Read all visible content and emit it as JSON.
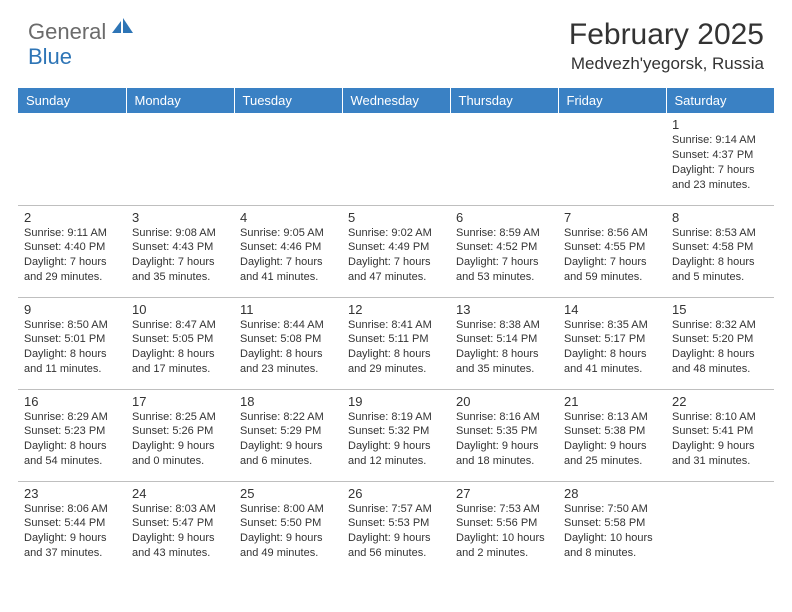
{
  "logo": {
    "general": "General",
    "blue": "Blue"
  },
  "title": "February 2025",
  "location": "Medvezh'yegorsk, Russia",
  "colors": {
    "header_bg": "#3a81c4",
    "header_text": "#ffffff",
    "body_text": "#333333",
    "grid_line": "#bfbfbf",
    "logo_gray": "#6b6b6b",
    "logo_blue": "#2e75b6",
    "background": "#ffffff"
  },
  "weekdays": [
    "Sunday",
    "Monday",
    "Tuesday",
    "Wednesday",
    "Thursday",
    "Friday",
    "Saturday"
  ],
  "weeks": [
    [
      null,
      null,
      null,
      null,
      null,
      null,
      {
        "n": "1",
        "sr": "Sunrise: 9:14 AM",
        "ss": "Sunset: 4:37 PM",
        "d1": "Daylight: 7 hours",
        "d2": "and 23 minutes."
      }
    ],
    [
      {
        "n": "2",
        "sr": "Sunrise: 9:11 AM",
        "ss": "Sunset: 4:40 PM",
        "d1": "Daylight: 7 hours",
        "d2": "and 29 minutes."
      },
      {
        "n": "3",
        "sr": "Sunrise: 9:08 AM",
        "ss": "Sunset: 4:43 PM",
        "d1": "Daylight: 7 hours",
        "d2": "and 35 minutes."
      },
      {
        "n": "4",
        "sr": "Sunrise: 9:05 AM",
        "ss": "Sunset: 4:46 PM",
        "d1": "Daylight: 7 hours",
        "d2": "and 41 minutes."
      },
      {
        "n": "5",
        "sr": "Sunrise: 9:02 AM",
        "ss": "Sunset: 4:49 PM",
        "d1": "Daylight: 7 hours",
        "d2": "and 47 minutes."
      },
      {
        "n": "6",
        "sr": "Sunrise: 8:59 AM",
        "ss": "Sunset: 4:52 PM",
        "d1": "Daylight: 7 hours",
        "d2": "and 53 minutes."
      },
      {
        "n": "7",
        "sr": "Sunrise: 8:56 AM",
        "ss": "Sunset: 4:55 PM",
        "d1": "Daylight: 7 hours",
        "d2": "and 59 minutes."
      },
      {
        "n": "8",
        "sr": "Sunrise: 8:53 AM",
        "ss": "Sunset: 4:58 PM",
        "d1": "Daylight: 8 hours",
        "d2": "and 5 minutes."
      }
    ],
    [
      {
        "n": "9",
        "sr": "Sunrise: 8:50 AM",
        "ss": "Sunset: 5:01 PM",
        "d1": "Daylight: 8 hours",
        "d2": "and 11 minutes."
      },
      {
        "n": "10",
        "sr": "Sunrise: 8:47 AM",
        "ss": "Sunset: 5:05 PM",
        "d1": "Daylight: 8 hours",
        "d2": "and 17 minutes."
      },
      {
        "n": "11",
        "sr": "Sunrise: 8:44 AM",
        "ss": "Sunset: 5:08 PM",
        "d1": "Daylight: 8 hours",
        "d2": "and 23 minutes."
      },
      {
        "n": "12",
        "sr": "Sunrise: 8:41 AM",
        "ss": "Sunset: 5:11 PM",
        "d1": "Daylight: 8 hours",
        "d2": "and 29 minutes."
      },
      {
        "n": "13",
        "sr": "Sunrise: 8:38 AM",
        "ss": "Sunset: 5:14 PM",
        "d1": "Daylight: 8 hours",
        "d2": "and 35 minutes."
      },
      {
        "n": "14",
        "sr": "Sunrise: 8:35 AM",
        "ss": "Sunset: 5:17 PM",
        "d1": "Daylight: 8 hours",
        "d2": "and 41 minutes."
      },
      {
        "n": "15",
        "sr": "Sunrise: 8:32 AM",
        "ss": "Sunset: 5:20 PM",
        "d1": "Daylight: 8 hours",
        "d2": "and 48 minutes."
      }
    ],
    [
      {
        "n": "16",
        "sr": "Sunrise: 8:29 AM",
        "ss": "Sunset: 5:23 PM",
        "d1": "Daylight: 8 hours",
        "d2": "and 54 minutes."
      },
      {
        "n": "17",
        "sr": "Sunrise: 8:25 AM",
        "ss": "Sunset: 5:26 PM",
        "d1": "Daylight: 9 hours",
        "d2": "and 0 minutes."
      },
      {
        "n": "18",
        "sr": "Sunrise: 8:22 AM",
        "ss": "Sunset: 5:29 PM",
        "d1": "Daylight: 9 hours",
        "d2": "and 6 minutes."
      },
      {
        "n": "19",
        "sr": "Sunrise: 8:19 AM",
        "ss": "Sunset: 5:32 PM",
        "d1": "Daylight: 9 hours",
        "d2": "and 12 minutes."
      },
      {
        "n": "20",
        "sr": "Sunrise: 8:16 AM",
        "ss": "Sunset: 5:35 PM",
        "d1": "Daylight: 9 hours",
        "d2": "and 18 minutes."
      },
      {
        "n": "21",
        "sr": "Sunrise: 8:13 AM",
        "ss": "Sunset: 5:38 PM",
        "d1": "Daylight: 9 hours",
        "d2": "and 25 minutes."
      },
      {
        "n": "22",
        "sr": "Sunrise: 8:10 AM",
        "ss": "Sunset: 5:41 PM",
        "d1": "Daylight: 9 hours",
        "d2": "and 31 minutes."
      }
    ],
    [
      {
        "n": "23",
        "sr": "Sunrise: 8:06 AM",
        "ss": "Sunset: 5:44 PM",
        "d1": "Daylight: 9 hours",
        "d2": "and 37 minutes."
      },
      {
        "n": "24",
        "sr": "Sunrise: 8:03 AM",
        "ss": "Sunset: 5:47 PM",
        "d1": "Daylight: 9 hours",
        "d2": "and 43 minutes."
      },
      {
        "n": "25",
        "sr": "Sunrise: 8:00 AM",
        "ss": "Sunset: 5:50 PM",
        "d1": "Daylight: 9 hours",
        "d2": "and 49 minutes."
      },
      {
        "n": "26",
        "sr": "Sunrise: 7:57 AM",
        "ss": "Sunset: 5:53 PM",
        "d1": "Daylight: 9 hours",
        "d2": "and 56 minutes."
      },
      {
        "n": "27",
        "sr": "Sunrise: 7:53 AM",
        "ss": "Sunset: 5:56 PM",
        "d1": "Daylight: 10 hours",
        "d2": "and 2 minutes."
      },
      {
        "n": "28",
        "sr": "Sunrise: 7:50 AM",
        "ss": "Sunset: 5:58 PM",
        "d1": "Daylight: 10 hours",
        "d2": "and 8 minutes."
      },
      null
    ]
  ]
}
